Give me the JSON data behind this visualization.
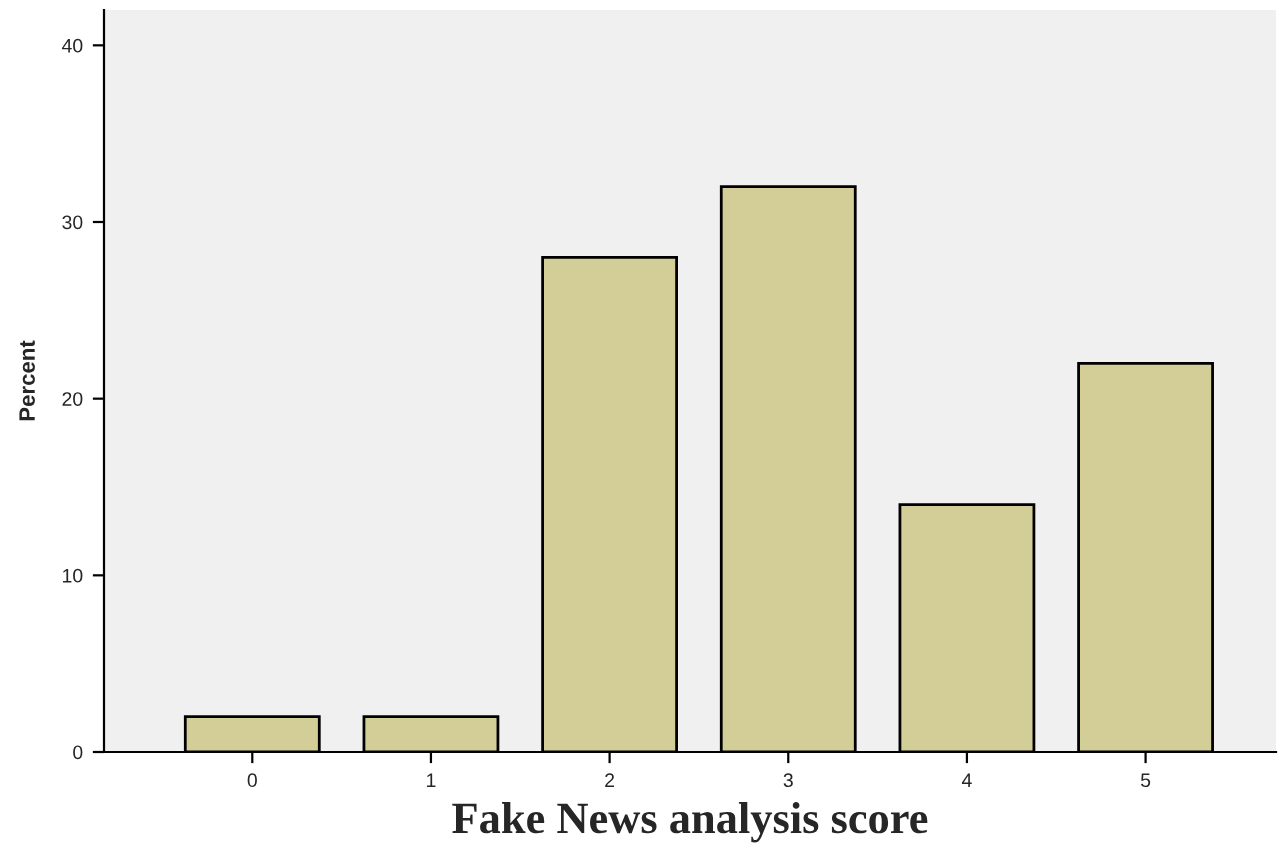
{
  "chart_data": {
    "type": "bar",
    "xlabel": "Fake News analysis score",
    "ylabel": "Percent",
    "categories": [
      "0",
      "1",
      "2",
      "3",
      "4",
      "5"
    ],
    "values": [
      2,
      2,
      28,
      32,
      14,
      22
    ],
    "color": "#d3ce97",
    "ylim": [
      0,
      42
    ],
    "yticks": [
      0,
      10,
      20,
      30,
      40
    ],
    "grid": false,
    "legend": false
  }
}
